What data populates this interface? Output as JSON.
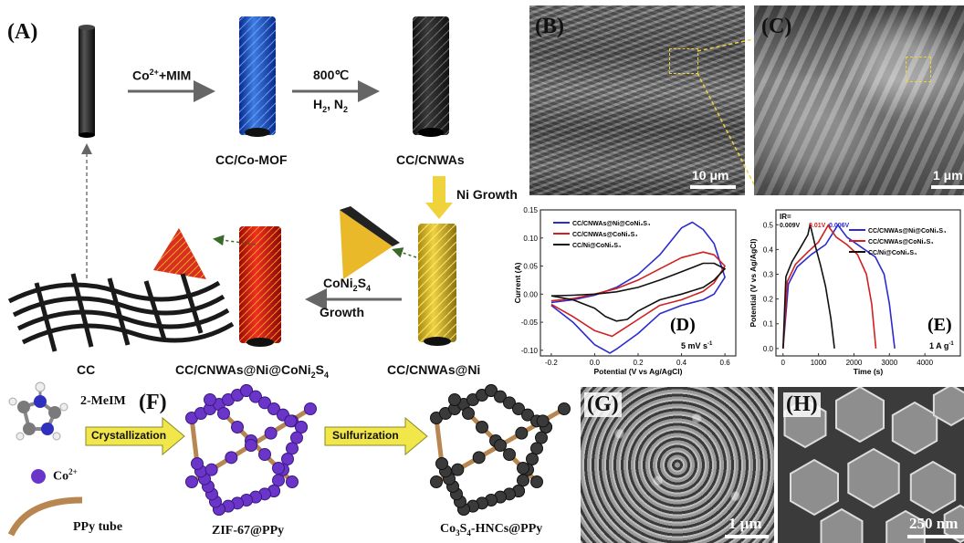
{
  "panels": {
    "A": "(A)",
    "B": "(B)",
    "C": "(C)",
    "D": "(D)",
    "E": "(E)",
    "F": "(F)",
    "G": "(G)",
    "H": "(H)"
  },
  "scheme_a": {
    "step1_top": "Co",
    "step1_sup": "2+",
    "step1_rest": "+MIM",
    "step2_top": "800℃",
    "step2_bottom": "H",
    "step2_bottom_sub": "2",
    "step2_bottom_mid": ", N",
    "step2_bottom_sub2": "2",
    "cc_mof": "CC/Co-MOF",
    "cc_cnwas": "CC/CNWAs",
    "ni_growth": "Ni Growth",
    "coni_top": "CoNi",
    "coni_sub1": "2",
    "coni_mid": "S",
    "coni_sub2": "4",
    "coni_growth": "Growth",
    "cc": "CC",
    "final": "CC/CNWAs@Ni@CoNi",
    "final_sub1": "2",
    "final_mid": "S",
    "final_sub2": "4",
    "ni_product": "CC/CNWAs@Ni"
  },
  "sem": {
    "b_scale": "10 μm",
    "c_scale": "1 μm",
    "g_scale": "1 μm",
    "h_scale": "250 nm"
  },
  "scheme_f": {
    "mei": "2-MeIM",
    "co": "Co",
    "co_sup": "2+",
    "ppy": "PPy tube",
    "crystallization": "Crystallization",
    "sulfurization": "Sulfurization",
    "zif": "ZIF-67@PPy",
    "co3s4": "Co",
    "co3s4_sub1": "3",
    "co3s4_mid": "S",
    "co3s4_sub2": "4",
    "co3s4_rest": "-HNCs@PPy"
  },
  "colors": {
    "blue": "#2b2bd0",
    "red": "#d02020",
    "black": "#111111",
    "arrow_yellow": "#f1e64a",
    "gold": "#e0b830"
  },
  "chart_data": [
    {
      "type": "line",
      "panel": "D",
      "xlabel": "Potential (V vs Ag/AgCl)",
      "ylabel": "Current (A)",
      "xlim": [
        -0.25,
        0.65
      ],
      "ylim": [
        -0.11,
        0.15
      ],
      "xticks": [
        "-0.2",
        "0.0",
        "0.2",
        "0.4",
        "0.6"
      ],
      "yticks": [
        "0.15",
        "0.10",
        "0.05",
        "0.00",
        "-0.05",
        "-0.10"
      ],
      "annotation": "5 mV s",
      "annotation_sup": "-1",
      "legend_position": "top-left",
      "series": [
        {
          "name": "CC/CNWAs@Ni@CoNi₂S₄",
          "color": "#2b2bd0",
          "x": [
            -0.2,
            -0.1,
            0.0,
            0.1,
            0.2,
            0.3,
            0.4,
            0.45,
            0.5,
            0.55,
            0.6,
            0.55,
            0.5,
            0.4,
            0.3,
            0.2,
            0.1,
            0.07,
            0.0,
            -0.1,
            -0.2
          ],
          "y": [
            -0.015,
            -0.01,
            -0.002,
            0.012,
            0.035,
            0.07,
            0.118,
            0.128,
            0.115,
            0.09,
            0.03,
            0.0,
            -0.01,
            -0.02,
            -0.035,
            -0.07,
            -0.098,
            -0.105,
            -0.09,
            -0.05,
            -0.02
          ]
        },
        {
          "name": "CC/CNWAs@CoNi₂S₄",
          "color": "#d02020",
          "x": [
            -0.2,
            -0.1,
            0.0,
            0.1,
            0.2,
            0.3,
            0.4,
            0.5,
            0.55,
            0.6,
            0.55,
            0.5,
            0.4,
            0.3,
            0.2,
            0.1,
            0.08,
            0.0,
            -0.1,
            -0.2
          ],
          "y": [
            -0.012,
            -0.008,
            0.0,
            0.01,
            0.025,
            0.045,
            0.065,
            0.075,
            0.07,
            0.05,
            0.02,
            0.005,
            -0.01,
            -0.02,
            -0.045,
            -0.07,
            -0.075,
            -0.065,
            -0.04,
            -0.018
          ]
        },
        {
          "name": "CC/Ni@CoNi₂S₄",
          "color": "#111111",
          "x": [
            -0.2,
            -0.1,
            0.0,
            0.1,
            0.2,
            0.3,
            0.4,
            0.5,
            0.55,
            0.6,
            0.55,
            0.5,
            0.4,
            0.3,
            0.2,
            0.15,
            0.1,
            0.05,
            0.0,
            -0.1,
            -0.2
          ],
          "y": [
            -0.003,
            -0.002,
            0.0,
            0.004,
            0.012,
            0.025,
            0.04,
            0.055,
            0.055,
            0.045,
            0.025,
            0.012,
            0.0,
            -0.01,
            -0.03,
            -0.045,
            -0.048,
            -0.04,
            -0.025,
            -0.01,
            -0.003
          ]
        }
      ]
    },
    {
      "type": "line",
      "panel": "E",
      "xlabel": "Time (s)",
      "ylabel": "Potential (V vs Ag/AgCl)",
      "xlim": [
        -200,
        5000
      ],
      "ylim": [
        -0.03,
        0.56
      ],
      "xticks": [
        "0",
        "1000",
        "2000",
        "3000",
        "4000"
      ],
      "yticks": [
        "0.5",
        "0.4",
        "0.3",
        "0.2",
        "0.1",
        "0.0"
      ],
      "annotation": "1 A g",
      "annotation_sup": "-1",
      "ir_label": "IR=",
      "ir_values": [
        "0.009V",
        "0.01V",
        "0.006V"
      ],
      "legend_position": "top-right",
      "series": [
        {
          "name": "CC/CNWAs@Ni@CoNi₂S₄",
          "color": "#2b2bd0",
          "x": [
            0,
            150,
            400,
            800,
            1200,
            1550,
            1570,
            1800,
            2200,
            2600,
            2850,
            3000,
            3150
          ],
          "y": [
            0.0,
            0.26,
            0.33,
            0.38,
            0.42,
            0.5,
            0.494,
            0.45,
            0.41,
            0.37,
            0.3,
            0.18,
            0.0
          ]
        },
        {
          "name": "CC/CNWAs@CoNi₂S₄",
          "color": "#d02020",
          "x": [
            0,
            120,
            350,
            700,
            1000,
            1280,
            1300,
            1500,
            1800,
            2100,
            2350,
            2500,
            2620
          ],
          "y": [
            0.0,
            0.27,
            0.34,
            0.39,
            0.43,
            0.5,
            0.49,
            0.45,
            0.42,
            0.38,
            0.3,
            0.18,
            0.0
          ]
        },
        {
          "name": "CC/Ni@CoNi₂S₄",
          "color": "#111111",
          "x": [
            0,
            80,
            250,
            500,
            700,
            760,
            780,
            900,
            1050,
            1200,
            1350,
            1450
          ],
          "y": [
            0.0,
            0.29,
            0.35,
            0.41,
            0.46,
            0.5,
            0.491,
            0.42,
            0.34,
            0.25,
            0.12,
            0.0
          ]
        }
      ]
    }
  ]
}
